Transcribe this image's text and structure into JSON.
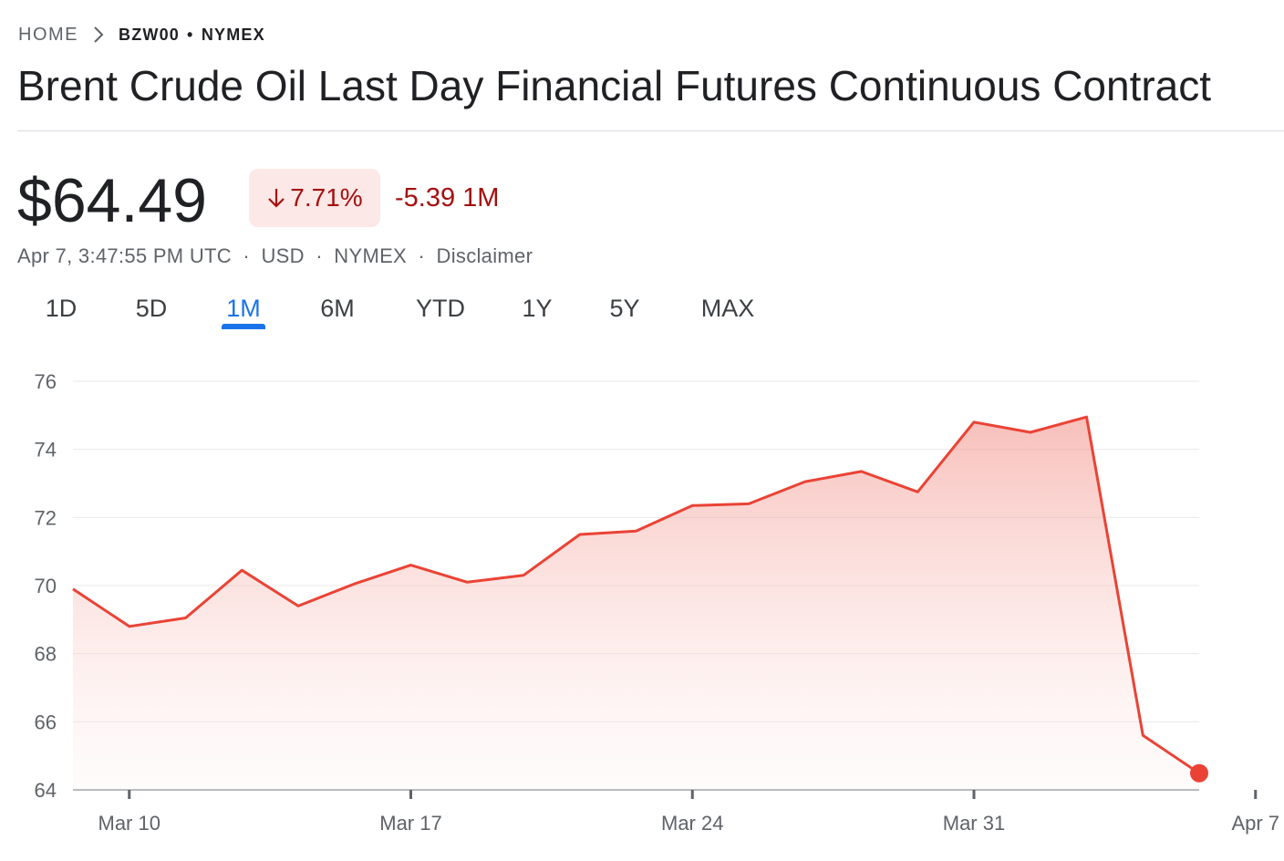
{
  "breadcrumb": {
    "home": "HOME",
    "ticker": "BZW00",
    "separator": "•",
    "exchange": "NYMEX"
  },
  "title": "Brent Crude Oil Last Day Financial Futures Continuous Contract",
  "quote": {
    "price": "$64.49",
    "change_percent": "7.71%",
    "change_direction": "down",
    "change_amount": "-5.39 1M",
    "timestamp": "Apr 7, 3:47:55 PM UTC",
    "currency": "USD",
    "exchange": "NYMEX",
    "disclaimer": "Disclaimer",
    "meta_separator": "·"
  },
  "tabs": [
    {
      "label": "1D",
      "active": false
    },
    {
      "label": "5D",
      "active": false
    },
    {
      "label": "1M",
      "active": true
    },
    {
      "label": "6M",
      "active": false
    },
    {
      "label": "YTD",
      "active": false
    },
    {
      "label": "1Y",
      "active": false
    },
    {
      "label": "5Y",
      "active": false
    },
    {
      "label": "MAX",
      "active": false
    }
  ],
  "colors": {
    "negative": "#a50e0e",
    "negative_bg": "#fce8e6",
    "line": "#ea4335",
    "accent": "#1a73e8"
  },
  "icons": {
    "breadcrumb_separator": "chevron-right-icon",
    "change_arrow": "arrow-down-icon"
  },
  "chart_data": {
    "type": "area",
    "title": "",
    "xlabel": "",
    "ylabel": "",
    "ylim": [
      64,
      76
    ],
    "yticks": [
      64,
      66,
      68,
      70,
      72,
      74,
      76
    ],
    "x_tick_labels": [
      "Mar 10",
      "Mar 17",
      "Mar 24",
      "Mar 31",
      "Apr 7"
    ],
    "x_tick_index": [
      1,
      6,
      11,
      16,
      21
    ],
    "grid": true,
    "last_point_marker": true,
    "series": [
      {
        "values": [
          69.9,
          68.8,
          69.05,
          70.45,
          69.4,
          70.05,
          70.6,
          70.1,
          70.3,
          71.5,
          71.6,
          72.35,
          72.4,
          73.05,
          73.35,
          72.75,
          74.8,
          74.5,
          74.95,
          65.6,
          64.49
        ]
      }
    ]
  }
}
